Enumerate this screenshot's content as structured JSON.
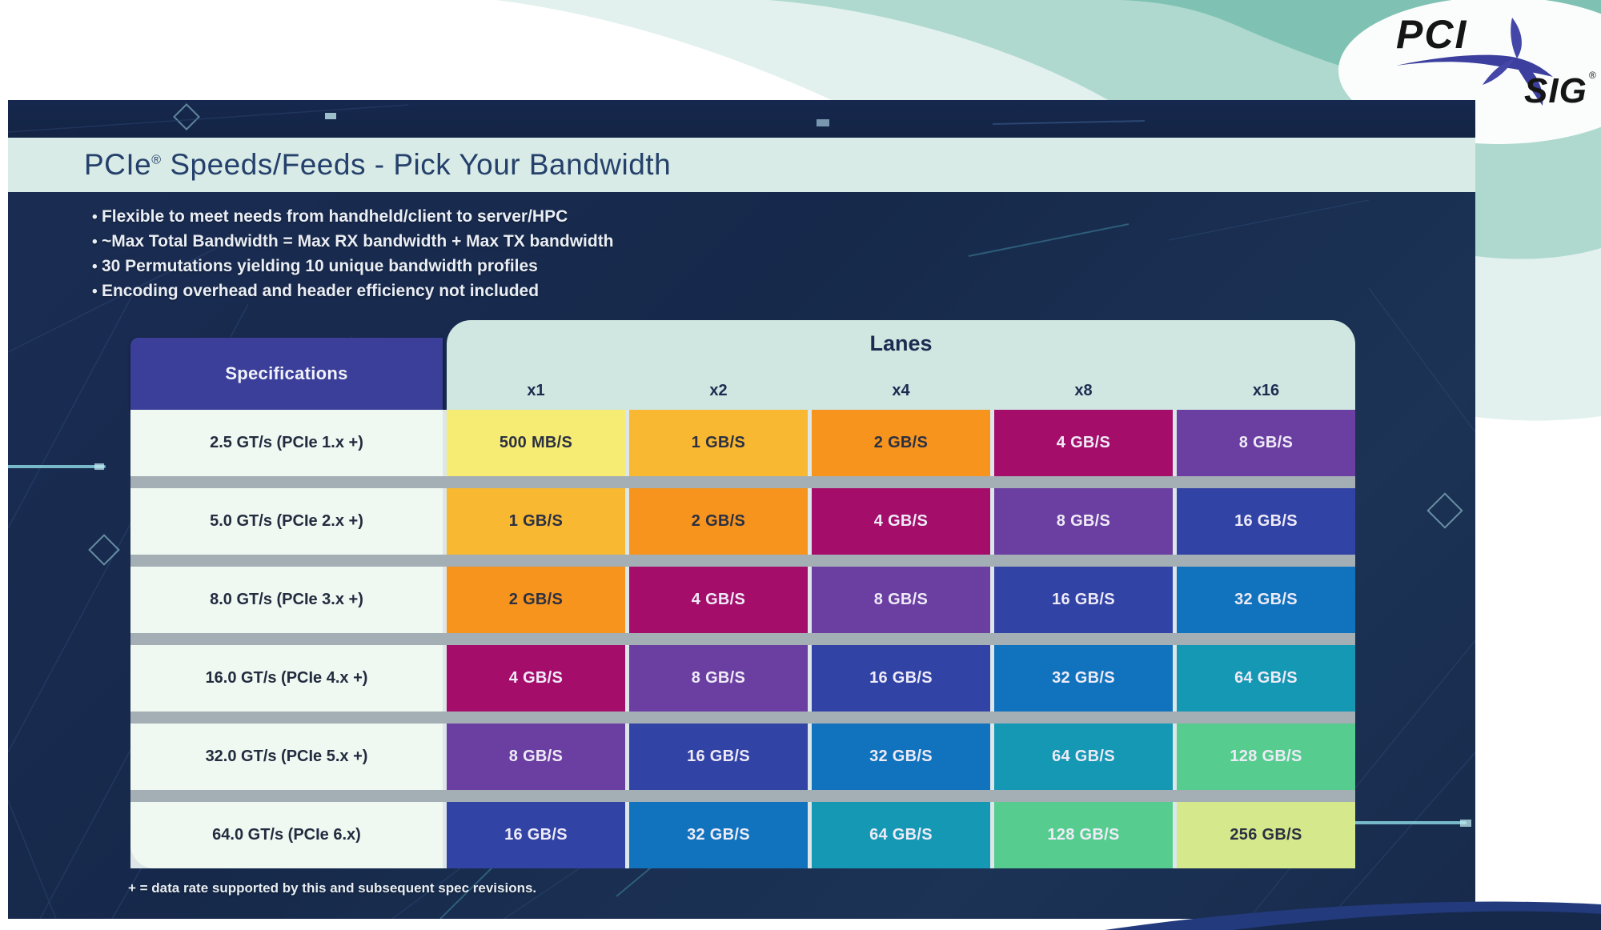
{
  "logo": {
    "pci": "PCI",
    "sig": "SIG",
    "registered": "®"
  },
  "title": {
    "product": "PCIe",
    "reg": "®",
    "rest": " Speeds/Feeds - Pick Your Bandwidth"
  },
  "bullets": [
    "Flexible to meet needs from handheld/client to server/HPC",
    "~Max Total Bandwidth = Max RX bandwidth + Max TX bandwidth",
    "30 Permutations yielding 10 unique bandwidth profiles",
    "Encoding overhead and header efficiency not included"
  ],
  "footnote": "+ = data rate supported by this and subsequent spec revisions.",
  "table": {
    "spec_header": "Specifications",
    "lanes_header": "Lanes",
    "lane_columns": [
      "x1",
      "x2",
      "x4",
      "x8",
      "x16"
    ],
    "rows": [
      {
        "spec": "2.5 GT/s (PCIe 1.x +)",
        "cells": [
          "500 MB/S",
          "1 GB/S",
          "2 GB/S",
          "4 GB/S",
          "8 GB/S"
        ]
      },
      {
        "spec": "5.0 GT/s (PCIe 2.x +)",
        "cells": [
          "1 GB/S",
          "2 GB/S",
          "4 GB/S",
          "8 GB/S",
          "16 GB/S"
        ]
      },
      {
        "spec": "8.0 GT/s (PCIe 3.x +)",
        "cells": [
          "2 GB/S",
          "4 GB/S",
          "8 GB/S",
          "16 GB/S",
          "32 GB/S"
        ]
      },
      {
        "spec": "16.0 GT/s (PCIe 4.x +)",
        "cells": [
          "4 GB/S",
          "8 GB/S",
          "16 GB/S",
          "32 GB/S",
          "64 GB/S"
        ]
      },
      {
        "spec": "32.0 GT/s (PCIe 5.x +)",
        "cells": [
          "8 GB/S",
          "16 GB/S",
          "32 GB/S",
          "64 GB/S",
          "128 GB/S"
        ]
      },
      {
        "spec": "64.0 GT/s (PCIe 6.x)",
        "cells": [
          "16 GB/S",
          "32 GB/S",
          "64 GB/S",
          "128 GB/S",
          "256 GB/S"
        ]
      }
    ],
    "value_colors": {
      "500 MB/S": {
        "bg": "#F6EC73",
        "fg": "dark"
      },
      "1 GB/S": {
        "bg": "#F9B832",
        "fg": "dark"
      },
      "2 GB/S": {
        "bg": "#F6941E",
        "fg": "dark"
      },
      "4 GB/S": {
        "bg": "#A50D6B",
        "fg": "light"
      },
      "8 GB/S": {
        "bg": "#6B3EA1",
        "fg": "light"
      },
      "16 GB/S": {
        "bg": "#3243A6",
        "fg": "light"
      },
      "32 GB/S": {
        "bg": "#1173BD",
        "fg": "light"
      },
      "64 GB/S": {
        "bg": "#1598B4",
        "fg": "light"
      },
      "128 GB/S": {
        "bg": "#56CD8F",
        "fg": "light"
      },
      "256 GB/S": {
        "bg": "#D5E98C",
        "fg": "dark"
      }
    }
  },
  "colors": {
    "navy_background": "#16294B",
    "top_band": "#15264A",
    "title_band": "#D8EBE7",
    "title_text": "#25416B",
    "lanes_header_bg": "#CFE6E1",
    "spec_header_bg": "#3B3F99",
    "spec_cell_bg": "#EFF8F1",
    "row_separator": "#A4AEB5",
    "cell_text_dark": "#2B3042",
    "cell_text_light": "#EEEBF7",
    "teal_swoosh_light": "#E2F1ED",
    "teal_swoosh_mid": "#AFD9CF",
    "teal_swoosh_deep": "#7FC2B4",
    "logo_blue": "#3C3F9E"
  }
}
